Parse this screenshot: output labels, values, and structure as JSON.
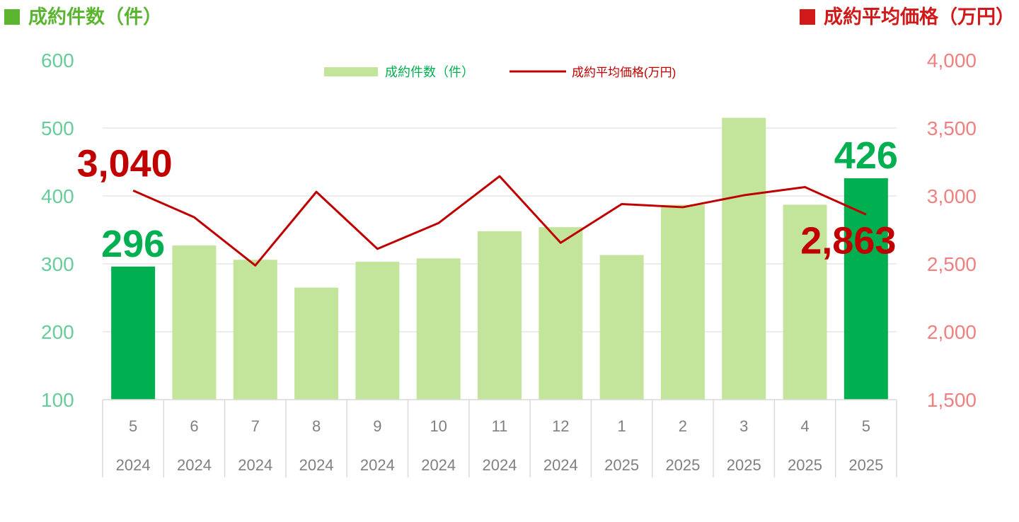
{
  "titles": {
    "left": "成約件数（件）",
    "right": "成約平均価格（万円）"
  },
  "colors": {
    "bar": "#c3e59b",
    "bar_highlight": "#00b050",
    "line": "#c00000",
    "left_axis": "#66cc99",
    "right_axis": "#f08080",
    "left_title": "#5bb531",
    "right_title": "#d21919",
    "label_count": "#00b050",
    "label_price": "#c00000",
    "legend_count_text": "#00b050",
    "legend_price_text": "#c00000",
    "grid": "#d9d9d9",
    "table_text": "#808080"
  },
  "chart_data": {
    "type": "bar",
    "categories": [
      {
        "month": "5",
        "year": "2024"
      },
      {
        "month": "6",
        "year": "2024"
      },
      {
        "month": "7",
        "year": "2024"
      },
      {
        "month": "8",
        "year": "2024"
      },
      {
        "month": "9",
        "year": "2024"
      },
      {
        "month": "10",
        "year": "2024"
      },
      {
        "month": "11",
        "year": "2024"
      },
      {
        "month": "12",
        "year": "2024"
      },
      {
        "month": "1",
        "year": "2025"
      },
      {
        "month": "2",
        "year": "2025"
      },
      {
        "month": "3",
        "year": "2025"
      },
      {
        "month": "4",
        "year": "2025"
      },
      {
        "month": "5",
        "year": "2025"
      }
    ],
    "series": [
      {
        "name": "成約件数（件）",
        "type": "bar",
        "axis": "left",
        "values": [
          296,
          327,
          306,
          265,
          303,
          308,
          348,
          354,
          313,
          387,
          515,
          387,
          426
        ],
        "highlight": [
          0,
          12
        ]
      },
      {
        "name": "成約平均価格(万円)",
        "type": "line",
        "axis": "right",
        "values": [
          3040,
          2843,
          2488,
          3030,
          2610,
          2800,
          3145,
          2655,
          2940,
          2917,
          3005,
          3065,
          2863
        ]
      }
    ],
    "left_axis": {
      "min": 100,
      "max": 600,
      "ticks": [
        "100",
        "200",
        "300",
        "400",
        "500",
        "600"
      ]
    },
    "right_axis": {
      "min": 1500,
      "max": 4000,
      "ticks": [
        "1,500",
        "2,000",
        "2,500",
        "3,000",
        "3,500",
        "4,000"
      ]
    },
    "data_labels": [
      {
        "series": 0,
        "index": 0,
        "text": "296"
      },
      {
        "series": 0,
        "index": 12,
        "text": "426"
      },
      {
        "series": 1,
        "index": 0,
        "text": "3,040"
      },
      {
        "series": 1,
        "index": 12,
        "text": "2,863"
      }
    ],
    "legend": {
      "position": "top-center"
    },
    "grid": true
  }
}
